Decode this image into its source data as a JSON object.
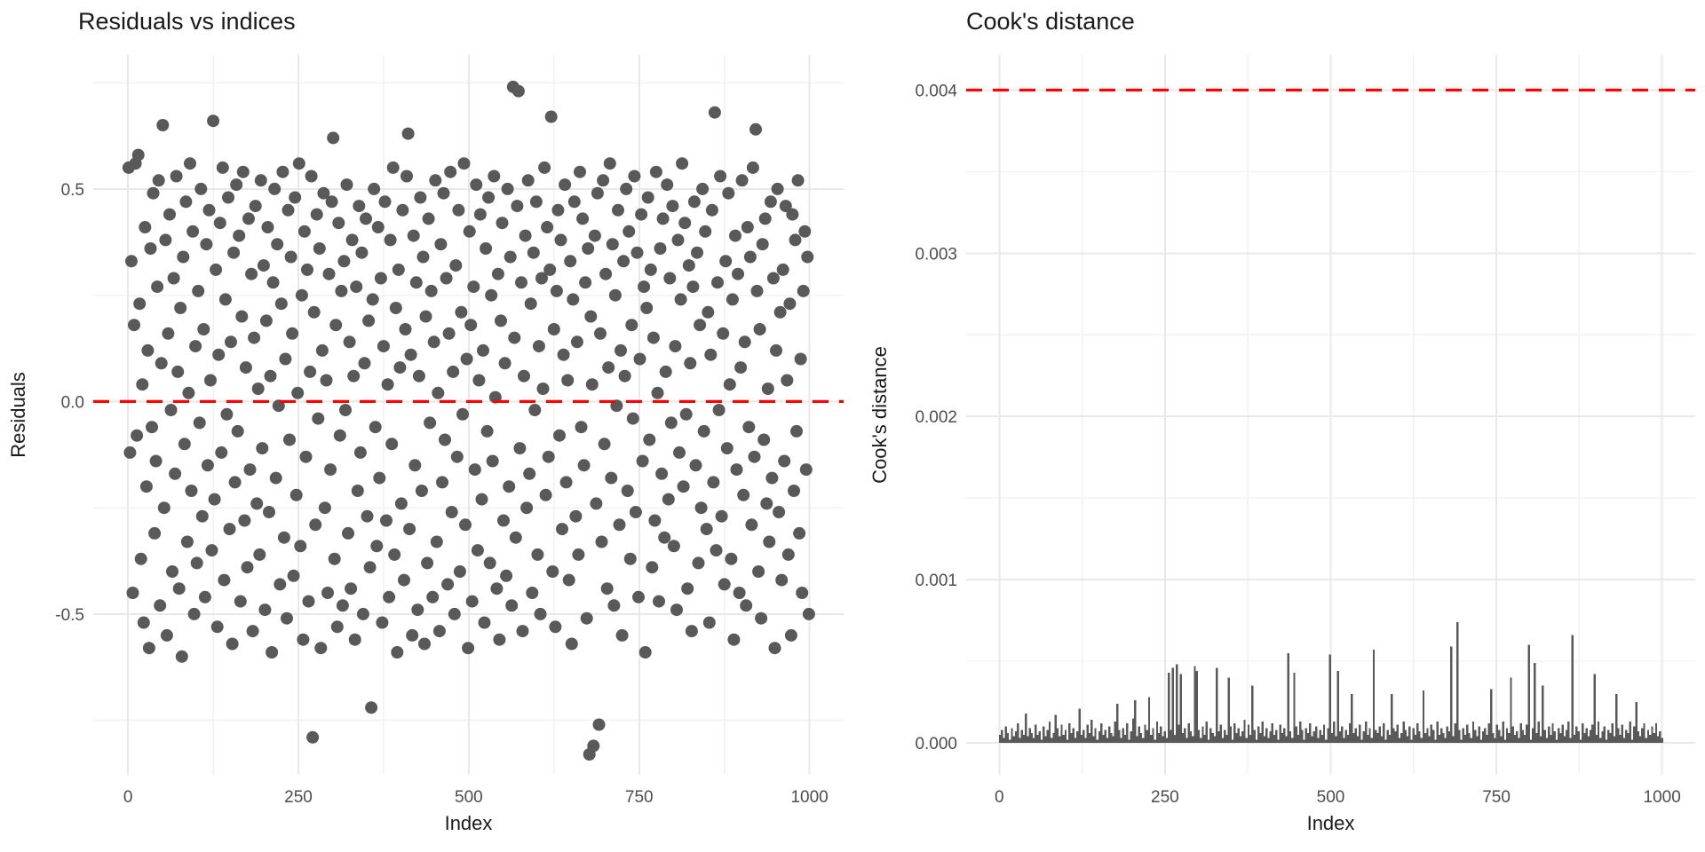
{
  "figure": {
    "background": "#FFFFFF",
    "colors": {
      "point": "#595959",
      "bar": "#595959",
      "grid_major": "#E8E8E8",
      "grid_minor": "#F2F2F2",
      "tick_label": "#4D4D4D",
      "axis_title": "#1A1A1A",
      "title": "#1A1A1A",
      "hline": "#FF0000"
    }
  },
  "chart_data": [
    {
      "type": "scatter",
      "title": "Residuals vs indices",
      "xlabel": "Index",
      "ylabel": "Residuals",
      "x_ticks": {
        "values": [
          0,
          250,
          500,
          750,
          1000
        ],
        "labels": [
          "0",
          "250",
          "500",
          "750",
          "1000"
        ]
      },
      "y_ticks": {
        "values": [
          -0.5,
          0.0,
          0.5
        ],
        "labels": [
          "-0.5",
          "0.0",
          "0.5"
        ]
      },
      "grid_minor_x": [
        125,
        375,
        625,
        875
      ],
      "grid_minor_y": [
        -0.75,
        -0.25,
        0.25,
        0.75
      ],
      "xlim": [
        1,
        1000
      ],
      "ylim": [
        -0.83,
        0.74
      ],
      "hline": {
        "value": 0.0,
        "style": "dashed"
      },
      "points": {
        "x_start": 1,
        "x_step": 2,
        "y_scale": 0.01,
        "y": [
          55,
          -12,
          33,
          -45,
          18,
          56,
          -8,
          58,
          23,
          -37,
          4,
          -52,
          41,
          -20,
          12,
          -58,
          36,
          -6,
          49,
          -31,
          -14,
          27,
          52,
          -48,
          9,
          65,
          -25,
          38,
          -55,
          16,
          44,
          -2,
          -40,
          29,
          -17,
          53,
          7,
          -44,
          22,
          -60,
          34,
          -10,
          47,
          -33,
          2,
          56,
          -21,
          40,
          -50,
          13,
          -38,
          26,
          -5,
          50,
          -27,
          17,
          -46,
          37,
          -15,
          45,
          5,
          -35,
          66,
          -23,
          31,
          -53,
          11,
          42,
          -12,
          55,
          -42,
          24,
          -3,
          48,
          -30,
          14,
          -57,
          35,
          -19,
          51,
          -7,
          39,
          -47,
          20,
          54,
          -28,
          8,
          -39,
          43,
          -16,
          30,
          -54,
          15,
          46,
          -24,
          3,
          -36,
          52,
          -11,
          32,
          -49,
          19,
          41,
          -26,
          6,
          -59,
          28,
          50,
          -18,
          37,
          -1,
          -43,
          23,
          54,
          -32,
          10,
          -51,
          45,
          -9,
          34,
          16,
          -41,
          48,
          -22,
          2,
          56,
          -34,
          25,
          -56,
          40,
          -13,
          31,
          -47,
          7,
          53,
          -79,
          21,
          -29,
          44,
          -4,
          36,
          -58,
          12,
          49,
          -25,
          5,
          -45,
          30,
          -16,
          47,
          62,
          -37,
          18,
          -53,
          42,
          -8,
          26,
          -48,
          33,
          -2,
          51,
          -31,
          14,
          -44,
          38,
          6,
          -56,
          27,
          -21,
          46,
          -12,
          35,
          -50,
          9,
          43,
          -27,
          19,
          -39,
          -72,
          24,
          50,
          -6,
          -34,
          41,
          -18,
          29,
          -52,
          13,
          47,
          -28,
          4,
          -46,
          38,
          -10,
          55,
          -36,
          22,
          -59,
          31,
          8,
          -24,
          45,
          -42,
          17,
          53,
          63,
          -30,
          11,
          -55,
          39,
          -15,
          28,
          -49,
          6,
          48,
          -21,
          34,
          -57,
          20,
          -38,
          43,
          -5,
          26,
          -46,
          14,
          52,
          -33,
          2,
          -54,
          37,
          -19,
          49,
          -9,
          29,
          -43,
          16,
          54,
          -26,
          7,
          -50,
          32,
          -13,
          45,
          -40,
          21,
          -3,
          56,
          -29,
          10,
          -58,
          40,
          18,
          -47,
          27,
          -16,
          51,
          -35,
          5,
          44,
          -23,
          12,
          -52,
          36,
          -7,
          48,
          -38,
          25,
          -14,
          53,
          1,
          -44,
          30,
          -56,
          19,
          42,
          -28,
          9,
          -41,
          50,
          -20,
          34,
          -48,
          74,
          15,
          -32,
          46,
          73,
          -11,
          28,
          -54,
          6,
          39,
          -25,
          52,
          -17,
          23,
          -45,
          35,
          -2,
          47,
          -36,
          13,
          -50,
          29,
          3,
          55,
          -22,
          41,
          -13,
          31,
          67,
          -40,
          17,
          -53,
          26,
          45,
          -8,
          38,
          -30,
          11,
          51,
          -19,
          5,
          -42,
          33,
          -57,
          24,
          47,
          -27,
          14,
          -36,
          54,
          -6,
          43,
          -15,
          28,
          -51,
          36,
          -83,
          20,
          4,
          -81,
          39,
          -24,
          49,
          -76,
          16,
          -33,
          52,
          -10,
          30,
          -44,
          8,
          56,
          -18,
          37,
          -48,
          25,
          -1,
          45,
          -29,
          12,
          -55,
          33,
          6,
          50,
          -21,
          40,
          -37,
          18,
          -4,
          53,
          -26,
          35,
          -46,
          10,
          44,
          -14,
          27,
          -59,
          22,
          48,
          -9,
          31,
          -39,
          15,
          -28,
          54,
          2,
          -47,
          36,
          -17,
          43,
          -32,
          7,
          51,
          -23,
          29,
          -5,
          46,
          -34,
          13,
          -49,
          38,
          -12,
          24,
          56,
          -20,
          42,
          -3,
          -44,
          32,
          9,
          -54,
          27,
          47,
          -15,
          35,
          -38,
          18,
          -25,
          50,
          -7,
          40,
          -30,
          21,
          -52,
          11,
          45,
          -19,
          68,
          -35,
          28,
          -2,
          53,
          -27,
          16,
          -43,
          33,
          -11,
          49,
          4,
          -37,
          24,
          -56,
          39,
          -16,
          30,
          -45,
          8,
          52,
          -22,
          14,
          -48,
          41,
          -6,
          34,
          -29,
          55,
          -13,
          64,
          26,
          -40,
          17,
          -51,
          37,
          -9,
          43,
          -24,
          3,
          -33,
          47,
          -18,
          29,
          -58,
          12,
          50,
          -26,
          21,
          -42,
          31,
          -14,
          46,
          5,
          -36,
          23,
          -55,
          44,
          -21,
          38,
          -7,
          52,
          -31,
          10,
          -45,
          26,
          40,
          -16,
          34,
          -50
        ]
      }
    },
    {
      "type": "bar",
      "title": "Cook's distance",
      "xlabel": "Index",
      "ylabel": "Cook's distance",
      "x_ticks": {
        "values": [
          0,
          250,
          500,
          750,
          1000
        ],
        "labels": [
          "0",
          "250",
          "500",
          "750",
          "1000"
        ]
      },
      "y_ticks": {
        "values": [
          0.0,
          0.001,
          0.002,
          0.003,
          0.004
        ],
        "labels": [
          "0.000",
          "0.001",
          "0.002",
          "0.003",
          "0.004"
        ]
      },
      "grid_minor_x": [
        125,
        375,
        625,
        875
      ],
      "grid_minor_y": [
        0.0005,
        0.0015,
        0.0025,
        0.0035
      ],
      "xlim": [
        1,
        1000
      ],
      "ylim": [
        0,
        0.004
      ],
      "hline": {
        "value": 0.004,
        "style": "dashed"
      },
      "bars": {
        "x_start": 1,
        "x_step": 3,
        "h_scale": 1e-05,
        "heights": [
          5,
          8,
          3,
          10,
          6,
          2,
          9,
          4,
          7,
          12,
          3,
          8,
          5,
          18,
          4,
          9,
          6,
          3,
          11,
          5,
          7,
          2,
          10,
          4,
          8,
          13,
          3,
          6,
          17,
          9,
          4,
          11,
          5,
          8,
          2,
          12,
          6,
          9,
          3,
          7,
          21,
          5,
          8,
          3,
          11,
          6,
          14,
          4,
          9,
          2,
          7,
          12,
          5,
          8,
          3,
          10,
          6,
          4,
          13,
          24,
          8,
          3,
          9,
          5,
          12,
          2,
          7,
          15,
          26,
          4,
          10,
          6,
          3,
          11,
          8,
          28,
          5,
          9,
          2,
          13,
          6,
          10,
          4,
          7,
          3,
          43,
          8,
          46,
          5,
          48,
          11,
          42,
          6,
          9,
          3,
          12,
          7,
          4,
          47,
          44,
          8,
          3,
          10,
          5,
          13,
          2,
          9,
          6,
          4,
          46,
          7,
          11,
          3,
          8,
          5,
          40,
          10,
          2,
          12,
          6,
          9,
          4,
          7,
          14,
          3,
          11,
          5,
          35,
          8,
          2,
          10,
          6,
          13,
          4,
          9,
          3,
          7,
          12,
          5,
          8,
          2,
          11,
          6,
          9,
          4,
          55,
          7,
          3,
          43,
          10,
          5,
          13,
          8,
          2,
          9,
          6,
          12,
          4,
          7,
          10,
          3,
          8,
          5,
          11,
          2,
          9,
          54,
          6,
          13,
          4,
          44,
          7,
          10,
          3,
          8,
          5,
          12,
          30,
          6,
          9,
          4,
          11,
          2,
          7,
          13,
          5,
          9,
          3,
          57,
          8,
          6,
          10,
          4,
          12,
          2,
          8,
          5,
          30,
          9,
          7,
          11,
          3,
          6,
          13,
          8,
          4,
          10,
          2,
          9,
          5,
          12,
          7,
          3,
          32,
          6,
          9,
          4,
          11,
          8,
          2,
          13,
          5,
          9,
          6,
          3,
          10,
          7,
          59,
          4,
          12,
          74,
          8,
          2,
          9,
          5,
          11,
          6,
          3,
          13,
          8,
          4,
          10,
          2,
          7,
          9,
          5,
          12,
          33,
          6,
          3,
          11,
          8,
          4,
          13,
          2,
          9,
          6,
          40,
          10,
          5,
          7,
          3,
          12,
          8,
          5,
          11,
          60,
          2,
          9,
          49,
          6,
          13,
          4,
          35,
          8,
          3,
          10,
          5,
          12,
          7,
          2,
          9,
          6,
          11,
          4,
          8,
          13,
          3,
          66,
          5,
          10,
          7,
          2,
          12,
          6,
          9,
          4,
          8,
          11,
          42,
          5,
          13,
          3,
          7,
          10,
          2,
          8,
          6,
          12,
          4,
          30,
          9,
          5,
          11,
          3,
          8,
          6,
          13,
          2,
          10,
          25,
          7,
          4,
          9,
          12,
          3,
          8,
          5,
          10,
          6,
          12,
          4,
          7,
          3
        ]
      }
    }
  ]
}
